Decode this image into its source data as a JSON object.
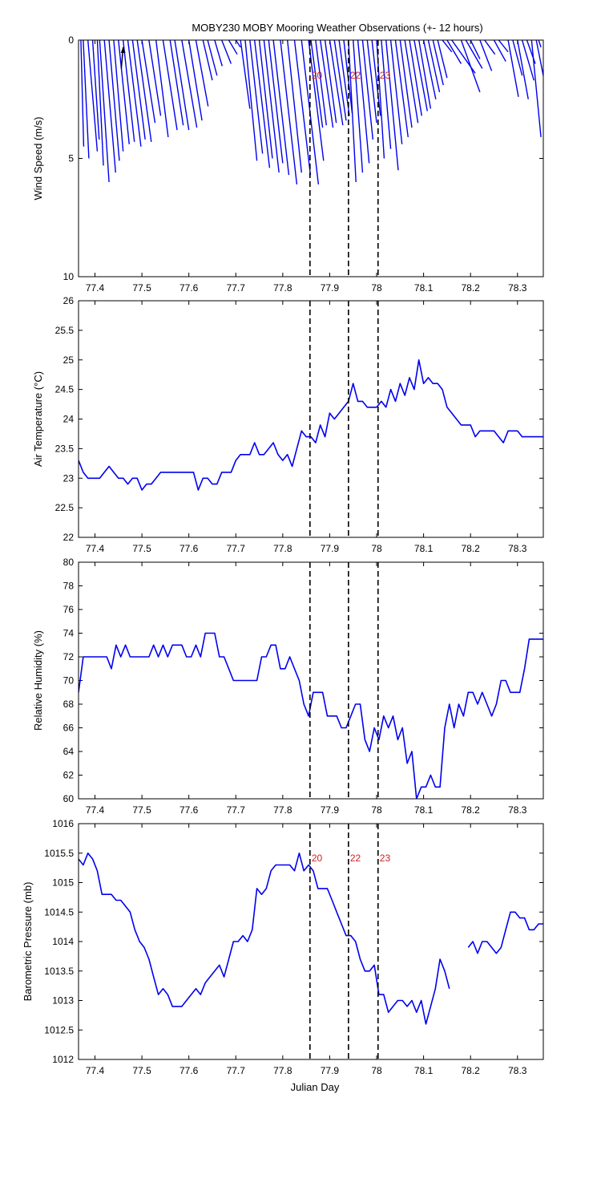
{
  "title": "MOBY230 MOBY Mooring Weather Observations (+- 12 hours)",
  "xlabel": "Julian Day",
  "colors": {
    "series": "#0000ee",
    "marker_text": "#cc2222",
    "axis": "#000000"
  },
  "markers": [
    {
      "x": 77.858,
      "label": "20"
    },
    {
      "x": 77.94,
      "label": "22"
    },
    {
      "x": 78.003,
      "label": "23"
    }
  ],
  "x_ticks": [
    "77.4",
    "77.5",
    "77.6",
    "77.7",
    "77.8",
    "77.9",
    "78",
    "78.1",
    "78.2",
    "78.3"
  ],
  "chart_data": [
    {
      "type": "stick",
      "ylabel": "Wind Speed (m/s)",
      "xlim": [
        77.365,
        78.355
      ],
      "ylim": [
        0,
        10
      ],
      "y_reversed": true,
      "y_ticks": [
        "0",
        "5",
        "10"
      ],
      "marker_labels_visible": true,
      "sticks": [
        [
          77.37,
          4.5,
          0.006
        ],
        [
          77.375,
          5.0,
          0.012
        ],
        [
          77.385,
          4.7,
          0.02
        ],
        [
          77.395,
          4.2,
          0.014
        ],
        [
          77.405,
          5.3,
          0.013
        ],
        [
          77.41,
          6.0,
          0.02
        ],
        [
          77.42,
          5.6,
          0.024
        ],
        [
          77.43,
          5.1,
          0.022
        ],
        [
          77.44,
          4.7,
          0.02
        ],
        [
          77.45,
          4.4,
          0.023
        ],
        [
          77.46,
          4.3,
          0.024
        ],
        [
          77.47,
          4.5,
          0.028
        ],
        [
          77.48,
          4.2,
          0.027
        ],
        [
          77.49,
          4.3,
          0.03
        ],
        [
          77.5,
          3.5,
          0.028
        ],
        [
          77.515,
          3.2,
          0.025
        ],
        [
          77.53,
          4.1,
          0.026
        ],
        [
          77.545,
          3.8,
          0.03
        ],
        [
          77.56,
          3.6,
          0.028
        ],
        [
          77.57,
          3.8,
          0.03
        ],
        [
          77.585,
          3.7,
          0.032
        ],
        [
          77.6,
          3.4,
          0.028
        ],
        [
          77.615,
          2.8,
          0.026
        ],
        [
          77.63,
          1.7,
          0.02
        ],
        [
          77.64,
          1.5,
          0.02
        ],
        [
          77.655,
          1.1,
          0.016
        ],
        [
          77.67,
          1.0,
          0.02
        ],
        [
          77.685,
          0.6,
          0.018
        ],
        [
          77.7,
          0.3,
          0.01
        ],
        [
          77.71,
          2.9,
          0.02
        ],
        [
          77.72,
          5.1,
          0.025
        ],
        [
          77.73,
          4.8,
          0.027
        ],
        [
          77.74,
          5.4,
          0.032
        ],
        [
          77.75,
          5.0,
          0.028
        ],
        [
          77.76,
          5.6,
          0.032
        ],
        [
          77.77,
          5.2,
          0.03
        ],
        [
          77.78,
          5.7,
          0.033
        ],
        [
          77.795,
          6.1,
          0.035
        ],
        [
          77.81,
          5.6,
          0.03
        ],
        [
          77.825,
          5.7,
          0.034
        ],
        [
          77.84,
          6.1,
          0.036
        ],
        [
          77.855,
          5.1,
          0.032
        ],
        [
          77.86,
          3.7,
          0.025
        ],
        [
          77.87,
          3.6,
          0.023
        ],
        [
          77.88,
          3.7,
          0.027
        ],
        [
          77.89,
          3.5,
          0.024
        ],
        [
          77.9,
          3.6,
          0.028
        ],
        [
          77.91,
          3.4,
          0.025
        ],
        [
          77.92,
          3.2,
          0.022
        ],
        [
          77.93,
          3.1,
          0.018
        ],
        [
          77.94,
          6.0,
          0.016
        ],
        [
          77.95,
          5.6,
          0.02
        ],
        [
          77.96,
          5.2,
          0.024
        ],
        [
          77.97,
          4.2,
          0.022
        ],
        [
          77.98,
          3.5,
          0.02
        ],
        [
          77.99,
          3.2,
          0.018
        ],
        [
          78.0,
          5.0,
          0.016
        ],
        [
          78.01,
          4.6,
          0.02
        ],
        [
          78.02,
          5.5,
          0.026
        ],
        [
          78.03,
          4.4,
          0.024
        ],
        [
          78.04,
          4.1,
          0.027
        ],
        [
          78.05,
          3.7,
          0.025
        ],
        [
          78.06,
          3.5,
          0.028
        ],
        [
          78.07,
          3.2,
          0.026
        ],
        [
          78.08,
          3.0,
          0.028
        ],
        [
          78.09,
          2.9,
          0.025
        ],
        [
          78.1,
          2.5,
          0.026
        ],
        [
          78.11,
          2.2,
          0.024
        ],
        [
          78.12,
          1.9,
          0.022
        ],
        [
          78.13,
          1.6,
          0.02
        ],
        [
          78.14,
          0.5,
          0.02
        ],
        [
          78.15,
          1.0,
          0.03
        ],
        [
          78.16,
          1.4,
          0.05
        ],
        [
          78.18,
          2.2,
          0.04
        ],
        [
          78.19,
          1.2,
          0.035
        ],
        [
          78.2,
          0.8,
          0.02
        ],
        [
          78.22,
          1.3,
          0.025
        ],
        [
          78.23,
          0.6,
          0.022
        ],
        [
          78.25,
          0.9,
          0.025
        ],
        [
          78.26,
          0.5,
          0.02
        ],
        [
          78.28,
          2.4,
          0.022
        ],
        [
          78.29,
          1.5,
          0.02
        ],
        [
          78.3,
          2.5,
          0.023
        ],
        [
          78.31,
          1.7,
          0.025
        ],
        [
          78.32,
          1.0,
          0.018
        ],
        [
          78.33,
          4.1,
          0.02
        ],
        [
          78.34,
          2.4,
          0.024
        ],
        [
          78.345,
          0.3,
          0.005
        ]
      ],
      "highlight_stick": [
        77.46,
        1.2
      ]
    },
    {
      "type": "line",
      "ylabel": "Air Temperature (°C)",
      "xlim": [
        77.365,
        78.355
      ],
      "ylim": [
        22,
        26
      ],
      "y_ticks": [
        "22",
        "22.5",
        "23",
        "23.5",
        "24",
        "24.5",
        "25",
        "25.5",
        "26"
      ],
      "marker_labels_visible": false,
      "series": [
        {
          "x": [
            77.365,
            77.375,
            77.385,
            77.395,
            77.41,
            77.42,
            77.43,
            77.44,
            77.45,
            77.46,
            77.47,
            77.48,
            77.49,
            77.5,
            77.51,
            77.52,
            77.53,
            77.54,
            77.55,
            77.56,
            77.57,
            77.58,
            77.59,
            77.6,
            77.61,
            77.62,
            77.63,
            77.64,
            77.65,
            77.66,
            77.67,
            77.68,
            77.69,
            77.7,
            77.71,
            77.72,
            77.73,
            77.74,
            77.75,
            77.76,
            77.77,
            77.78,
            77.79,
            77.8,
            77.81,
            77.82,
            77.83,
            77.84,
            77.85,
            77.86,
            77.87,
            77.88,
            77.89,
            77.9,
            77.91,
            77.92,
            77.93,
            77.94,
            77.95,
            77.96,
            77.97,
            77.98,
            77.99,
            78.0,
            78.01,
            78.02,
            78.03,
            78.04,
            78.05,
            78.06,
            78.07,
            78.08,
            78.09,
            78.1,
            78.11,
            78.12,
            78.13,
            78.14,
            78.15,
            78.16,
            78.17,
            78.18,
            78.19,
            78.2,
            78.21,
            78.22,
            78.23,
            78.24,
            78.25,
            78.26,
            78.27,
            78.28,
            78.29,
            78.3,
            78.31,
            78.32,
            78.33,
            78.34,
            78.355
          ],
          "y": [
            23.3,
            23.1,
            23.0,
            23.0,
            23.0,
            23.1,
            23.2,
            23.1,
            23.0,
            23.0,
            22.9,
            23.0,
            23.0,
            22.8,
            22.9,
            22.9,
            23.0,
            23.1,
            23.1,
            23.1,
            23.1,
            23.1,
            23.1,
            23.1,
            23.1,
            22.8,
            23.0,
            23.0,
            22.9,
            22.9,
            23.1,
            23.1,
            23.1,
            23.3,
            23.4,
            23.4,
            23.4,
            23.6,
            23.4,
            23.4,
            23.5,
            23.6,
            23.4,
            23.3,
            23.4,
            23.2,
            23.5,
            23.8,
            23.7,
            23.7,
            23.6,
            23.9,
            23.7,
            24.1,
            24.0,
            24.1,
            24.2,
            24.3,
            24.6,
            24.3,
            24.3,
            24.2,
            24.2,
            24.2,
            24.3,
            24.2,
            24.5,
            24.3,
            24.6,
            24.4,
            24.7,
            24.5,
            25.0,
            24.6,
            24.7,
            24.6,
            24.6,
            24.5,
            24.2,
            24.1,
            24.0,
            23.9,
            23.9,
            23.9,
            23.7,
            23.8,
            23.8,
            23.8,
            23.8,
            23.7,
            23.6,
            23.8,
            23.8,
            23.8,
            23.7,
            23.7,
            23.7,
            23.7,
            23.7
          ]
        }
      ]
    },
    {
      "type": "line",
      "ylabel": "Relative Humidity (%)",
      "xlim": [
        77.365,
        78.355
      ],
      "ylim": [
        60,
        80
      ],
      "y_ticks": [
        "60",
        "62",
        "64",
        "66",
        "68",
        "70",
        "72",
        "74",
        "76",
        "78",
        "80"
      ],
      "marker_labels_visible": false,
      "series": [
        {
          "x": [
            77.365,
            77.375,
            77.385,
            77.395,
            77.405,
            77.415,
            77.425,
            77.435,
            77.445,
            77.455,
            77.465,
            77.475,
            77.485,
            77.495,
            77.505,
            77.515,
            77.525,
            77.535,
            77.545,
            77.555,
            77.565,
            77.575,
            77.585,
            77.595,
            77.605,
            77.615,
            77.625,
            77.635,
            77.645,
            77.655,
            77.665,
            77.675,
            77.685,
            77.695,
            77.705,
            77.715,
            77.725,
            77.735,
            77.745,
            77.755,
            77.765,
            77.775,
            77.785,
            77.795,
            77.805,
            77.815,
            77.825,
            77.835,
            77.845,
            77.855,
            77.865,
            77.875,
            77.885,
            77.895,
            77.905,
            77.915,
            77.925,
            77.935,
            77.945,
            77.955,
            77.965,
            77.975,
            77.985,
            77.995,
            78.005,
            78.015,
            78.025,
            78.035,
            78.045,
            78.055,
            78.065,
            78.075,
            78.085,
            78.095,
            78.105,
            78.115,
            78.125,
            78.135,
            78.145,
            78.155,
            78.165,
            78.175,
            78.185,
            78.195,
            78.205,
            78.215,
            78.225,
            78.235,
            78.245,
            78.255,
            78.265,
            78.275,
            78.285,
            78.295,
            78.305,
            78.315,
            78.325,
            78.335,
            78.345,
            78.355
          ],
          "y": [
            69,
            72,
            72,
            72,
            72,
            72,
            72,
            71,
            73,
            72,
            73,
            72,
            72,
            72,
            72,
            72,
            73,
            72,
            73,
            72,
            73,
            73,
            73,
            72,
            72,
            73,
            72,
            74,
            74,
            74,
            72,
            72,
            71,
            70,
            70,
            70,
            70,
            70,
            70,
            72,
            72,
            73,
            73,
            71,
            71,
            72,
            71,
            70,
            68,
            67,
            69,
            69,
            69,
            67,
            67,
            67,
            66,
            66,
            67,
            68,
            68,
            65,
            64,
            66,
            65,
            67,
            66,
            67,
            65,
            66,
            63,
            64,
            60,
            61,
            61,
            62,
            61,
            61,
            66,
            68,
            66,
            68,
            67,
            69,
            69,
            68,
            69,
            68,
            67,
            68,
            70,
            70,
            69,
            69,
            69,
            71,
            73.5,
            73.5,
            73.5,
            73.5
          ]
        }
      ]
    },
    {
      "type": "line",
      "ylabel": "Barometric Pressure (mb)",
      "xlim": [
        77.365,
        78.355
      ],
      "ylim": [
        1012,
        1016
      ],
      "y_ticks": [
        "1012",
        "1012.5",
        "1013",
        "1013.5",
        "1014",
        "1014.5",
        "1015",
        "1015.5",
        "1016"
      ],
      "marker_labels_visible": true,
      "series": [
        {
          "x": [
            77.365,
            77.375,
            77.385,
            77.395,
            77.405,
            77.415,
            77.425,
            77.435,
            77.445,
            77.455,
            77.465,
            77.475,
            77.485,
            77.495,
            77.505,
            77.515,
            77.525,
            77.535,
            77.545,
            77.555,
            77.565,
            77.575,
            77.585,
            77.595,
            77.605,
            77.615,
            77.625,
            77.635,
            77.645,
            77.655,
            77.665,
            77.675,
            77.685,
            77.695,
            77.705,
            77.715,
            77.725,
            77.735,
            77.745,
            77.755,
            77.765,
            77.775,
            77.785,
            77.795,
            77.805,
            77.815,
            77.825,
            77.835,
            77.845,
            77.855,
            77.865,
            77.875,
            77.885,
            77.895,
            77.905,
            77.915,
            77.925,
            77.935,
            77.945,
            77.955,
            77.965,
            77.975,
            77.985,
            77.995,
            78.005,
            78.015,
            78.025,
            78.035,
            78.045,
            78.055,
            78.065,
            78.075,
            78.085,
            78.095,
            78.105,
            78.115,
            78.125,
            78.135,
            78.145,
            78.155,
            78.165,
            78.175,
            78.185
          ],
          "y": [
            1015.4,
            1015.3,
            1015.5,
            1015.4,
            1015.2,
            1014.8,
            1014.8,
            1014.8,
            1014.7,
            1014.7,
            1014.6,
            1014.5,
            1014.2,
            1014.0,
            1013.9,
            1013.7,
            1013.4,
            1013.1,
            1013.2,
            1013.1,
            1012.9,
            1012.9,
            1012.9,
            1013.0,
            1013.1,
            1013.2,
            1013.1,
            1013.3,
            1013.4,
            1013.5,
            1013.6,
            1013.4,
            1013.7,
            1014.0,
            1014.0,
            1014.1,
            1014.0,
            1014.2,
            1014.9,
            1014.8,
            1014.9,
            1015.2,
            1015.3,
            1015.3,
            1015.3,
            1015.3,
            1015.2,
            1015.5,
            1015.2,
            1015.3,
            1015.2,
            1014.9,
            1014.9,
            1014.9,
            1014.7,
            1014.5,
            1014.3,
            1014.1,
            1014.1,
            1014.0,
            1013.7,
            1013.5,
            1013.5,
            1013.6,
            1013.1,
            1013.1,
            1012.8,
            1012.9,
            1013.0,
            1013.0,
            1012.9,
            1013.0,
            1012.8,
            1013.0,
            1012.6,
            1012.9,
            1013.2,
            1013.7,
            1013.5,
            1013.2,
            null,
            null,
            null
          ]
        },
        {
          "x": [
            78.195,
            78.205,
            78.215,
            78.225,
            78.235,
            78.245,
            78.255,
            78.265,
            78.275,
            78.285,
            78.295,
            78.305,
            78.315,
            78.325,
            78.335,
            78.345,
            78.355
          ],
          "y": [
            1013.9,
            1014.0,
            1013.8,
            1014.0,
            1014.0,
            1013.9,
            1013.8,
            1013.9,
            1014.2,
            1014.5,
            1014.5,
            1014.4,
            1014.4,
            1014.2,
            1014.2,
            1014.3,
            1014.3
          ]
        }
      ]
    }
  ]
}
